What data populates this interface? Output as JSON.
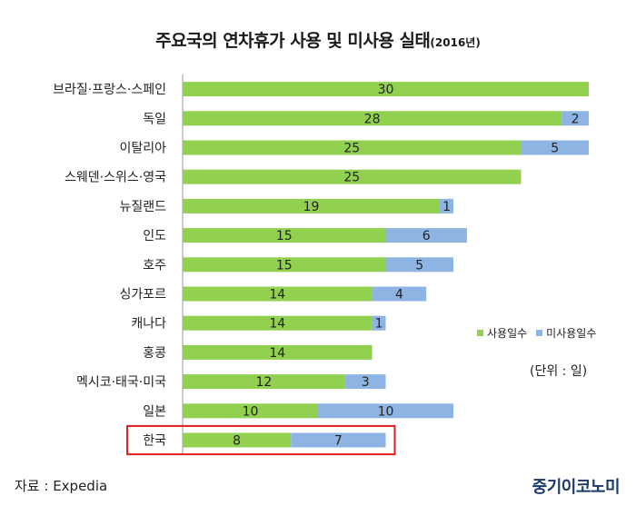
{
  "title": "주요국의 연차휴가 사용 및 미사용 실태",
  "title_suffix": "(2016년)",
  "legend": [
    {
      "label": "사용일수",
      "color": "#92d050"
    },
    {
      "label": "미사용일수",
      "color": "#8eb4e3"
    }
  ],
  "unit_note": "(단위 : 일)",
  "source": "자료 : Expedia",
  "brand": "중기이코노미",
  "highlight": {
    "category": "한국",
    "border_color": "#e02020"
  },
  "chart_data": {
    "type": "bar",
    "orientation": "horizontal",
    "stacked": true,
    "title": "주요국의 연차휴가 사용 및 미사용 실태(2016년)",
    "categories": [
      "브라질·프랑스·스페인",
      "독일",
      "이탈리아",
      "스웨덴·스위스·영국",
      "뉴질랜드",
      "인도",
      "호주",
      "싱가포르",
      "캐나다",
      "홍콩",
      "멕시코·태국·미국",
      "일본",
      "한국"
    ],
    "series": [
      {
        "name": "사용일수",
        "color": "#92d050",
        "values": [
          30,
          28,
          25,
          25,
          19,
          15,
          15,
          14,
          14,
          14,
          12,
          10,
          8
        ]
      },
      {
        "name": "미사용일수",
        "color": "#8eb4e3",
        "values": [
          null,
          2,
          5,
          null,
          1,
          6,
          5,
          4,
          1,
          null,
          3,
          10,
          7
        ]
      }
    ],
    "xlim": [
      0,
      30
    ],
    "grid": false,
    "legend_position": "right"
  }
}
